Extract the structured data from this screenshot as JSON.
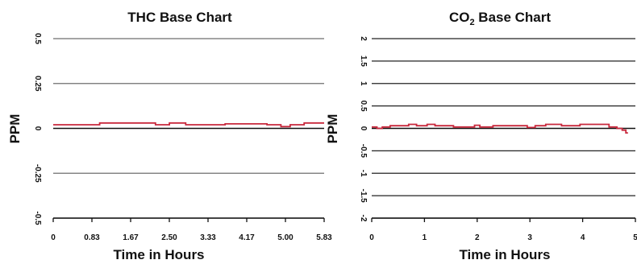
{
  "chart_data": [
    {
      "type": "line",
      "title": "THC Base Chart",
      "xlabel": "Time in Hours",
      "ylabel": "PPM",
      "xlim": [
        0,
        5.83
      ],
      "ylim": [
        -0.5,
        0.5
      ],
      "x_ticks": [
        "0",
        "0.83",
        "1.67",
        "2.50",
        "3.33",
        "4.17",
        "5.00",
        "5.83"
      ],
      "y_ticks": [
        "0.5",
        "0.25",
        "0",
        "-0.25",
        "-0.5"
      ],
      "y_tick_values": [
        0.5,
        0.25,
        0,
        -0.25,
        -0.5
      ],
      "grid": true,
      "color": "#c8283c",
      "series": [
        {
          "x": [
            0,
            1.0,
            1.0,
            2.2,
            2.2,
            2.5,
            2.5,
            2.85,
            2.85,
            3.7,
            3.7,
            4.6,
            4.6,
            4.9,
            4.9,
            5.1,
            5.1,
            5.4,
            5.4,
            5.83
          ],
          "y": [
            0.02,
            0.02,
            0.03,
            0.03,
            0.02,
            0.02,
            0.03,
            0.03,
            0.02,
            0.02,
            0.025,
            0.025,
            0.02,
            0.02,
            0.01,
            0.01,
            0.02,
            0.02,
            0.03,
            0.03
          ]
        }
      ]
    },
    {
      "type": "line",
      "title": "CO",
      "title_sub": "2",
      "title_suffix": " Base Chart",
      "xlabel": "Time in Hours",
      "ylabel": "PPM",
      "xlim": [
        0,
        5
      ],
      "ylim": [
        -2,
        2
      ],
      "x_ticks": [
        "0",
        "1",
        "2",
        "3",
        "4",
        "5"
      ],
      "x_tick_values": [
        0,
        1,
        2,
        3,
        4,
        5
      ],
      "y_ticks": [
        "2",
        "1.5",
        "1",
        "0.5",
        "0",
        "-0.5",
        "-1",
        "-1.5",
        "-2"
      ],
      "y_tick_values": [
        2,
        1.5,
        1,
        0.5,
        0,
        -0.5,
        -1,
        -1.5,
        -2
      ],
      "grid": true,
      "color": "#c8283c",
      "series": [
        {
          "x": [
            0,
            0.1,
            0.1,
            0.2,
            0.2,
            0.35,
            0.35,
            0.7,
            0.7,
            0.85,
            0.85,
            1.05,
            1.05,
            1.2,
            1.2,
            1.55,
            1.55,
            1.95,
            1.95,
            2.05,
            2.05,
            2.3,
            2.3,
            2.95,
            2.95,
            3.1,
            3.1,
            3.3,
            3.3,
            3.6,
            3.6,
            3.95,
            3.95,
            4.5,
            4.5,
            4.65,
            4.65,
            4.75,
            4.75,
            4.82,
            4.82,
            4.86
          ],
          "y": [
            0.03,
            0.03,
            0.0,
            0.0,
            0.03,
            0.03,
            0.06,
            0.06,
            0.09,
            0.09,
            0.06,
            0.06,
            0.09,
            0.09,
            0.06,
            0.06,
            0.03,
            0.03,
            0.07,
            0.07,
            0.03,
            0.03,
            0.06,
            0.06,
            0.02,
            0.02,
            0.06,
            0.06,
            0.09,
            0.09,
            0.06,
            0.06,
            0.09,
            0.09,
            0.03,
            0.03,
            0.0,
            0.0,
            -0.04,
            -0.04,
            -0.1,
            -0.1
          ]
        }
      ]
    }
  ]
}
